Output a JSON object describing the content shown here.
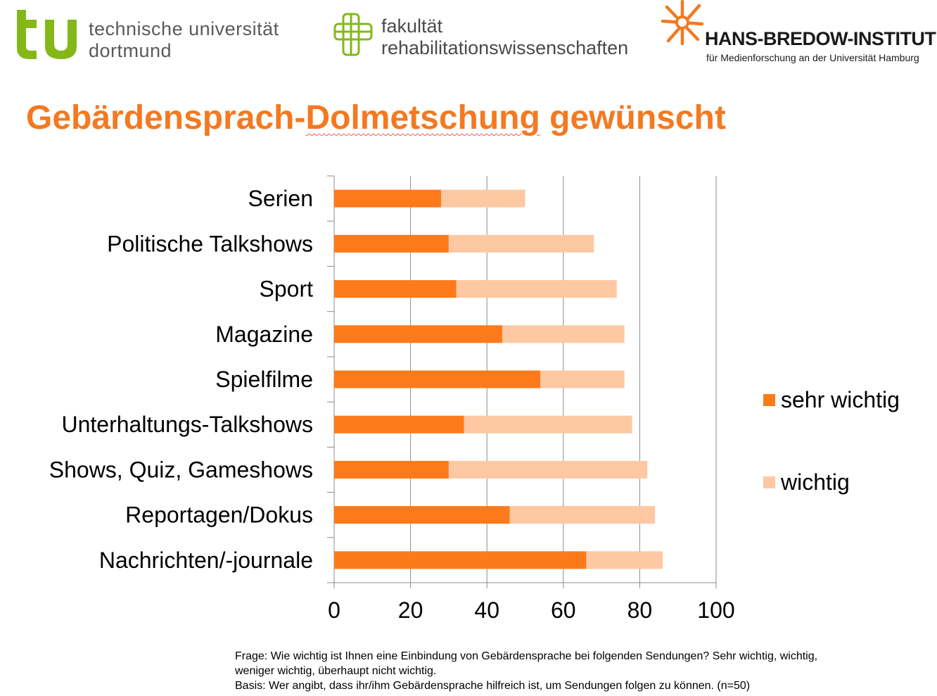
{
  "header": {
    "tu": {
      "line1": "technische universität",
      "line2": "dortmund"
    },
    "fakultaet": {
      "line1": "fakultät",
      "line2": "rehabilitationswissenschaften"
    },
    "hbi": {
      "name": "HANS-BREDOW-INSTITUT",
      "subtitle": "für Medienforschung an der Universität Hamburg"
    }
  },
  "title": {
    "part1": "Gebärdensprach-",
    "part2": "Dolmetschung",
    "part3": " gewünscht"
  },
  "colors": {
    "accent": "#f47920",
    "sehr_wichtig": "#fd7a1a",
    "wichtig": "#fdc8a2",
    "grid": "#8c8c8c",
    "tu_green": "#84b819"
  },
  "chart_data": {
    "type": "bar",
    "orientation": "horizontal",
    "stacked": true,
    "categories": [
      "Serien",
      "Politische Talkshows",
      "Sport",
      "Magazine",
      "Spielfilme",
      "Unterhaltungs-Talkshows",
      "Shows, Quiz, Gameshows",
      "Reportagen/Dokus",
      "Nachrichten/-journale"
    ],
    "series": [
      {
        "name": "sehr wichtig",
        "color": "#fd7a1a",
        "values": [
          28,
          30,
          32,
          44,
          54,
          34,
          30,
          46,
          66
        ]
      },
      {
        "name": "wichtig",
        "color": "#fdc8a2",
        "values": [
          22,
          38,
          42,
          32,
          22,
          44,
          52,
          38,
          20
        ]
      }
    ],
    "xlim": [
      0,
      100
    ],
    "xticks": [
      "0",
      "20",
      "40",
      "60",
      "80",
      "100"
    ],
    "grid": "vertical",
    "legend": "right",
    "title": "",
    "xlabel": "",
    "ylabel": ""
  },
  "footnote": {
    "frage": "Frage: Wie wichtig ist Ihnen eine Einbindung von Gebärdensprache bei folgenden Sendungen? Sehr wichtig, wichtig, weniger wichtig, überhaupt nicht wichtig.",
    "basis": "Basis: Wer angibt, dass ihr/ihm Gebärdensprache hilfreich ist, um Sendungen folgen zu können. (n=50)"
  }
}
